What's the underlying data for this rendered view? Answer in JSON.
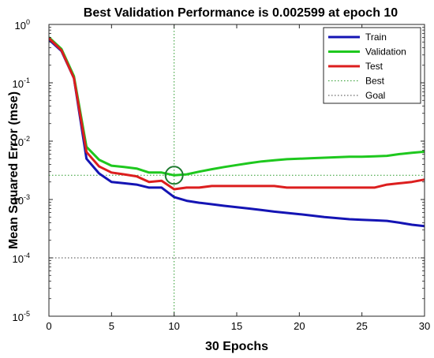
{
  "chart_data": {
    "type": "line",
    "title": "Best Validation Performance is 0.002599 at epoch 10",
    "xlabel": "30 Epochs",
    "ylabel": "Mean Squared Error  (mse)",
    "xscale": "linear",
    "yscale": "log",
    "xlim": [
      0,
      30
    ],
    "ylim": [
      1e-05,
      1
    ],
    "xticks": [
      0,
      5,
      10,
      15,
      20,
      25,
      30
    ],
    "yticks": [
      {
        "value": 1,
        "base": "10",
        "exp": "0"
      },
      {
        "value": 0.1,
        "base": "10",
        "exp": "-1"
      },
      {
        "value": 0.01,
        "base": "10",
        "exp": "-2"
      },
      {
        "value": 0.001,
        "base": "10",
        "exp": "-3"
      },
      {
        "value": 0.0001,
        "base": "10",
        "exp": "-4"
      },
      {
        "value": 1e-05,
        "base": "10",
        "exp": "-5"
      }
    ],
    "grid": false,
    "legend_position": "top-right",
    "x": [
      0,
      1,
      2,
      3,
      4,
      5,
      6,
      7,
      8,
      9,
      10,
      11,
      12,
      13,
      14,
      15,
      16,
      17,
      18,
      19,
      20,
      21,
      22,
      23,
      24,
      25,
      26,
      27,
      28,
      29,
      30
    ],
    "series": [
      {
        "name": "Train",
        "color": "#1414b4",
        "values": [
          0.55,
          0.35,
          0.12,
          0.005,
          0.0028,
          0.002,
          0.0019,
          0.0018,
          0.0016,
          0.0016,
          0.0011,
          0.00095,
          0.00088,
          0.00083,
          0.00078,
          0.00074,
          0.0007,
          0.00066,
          0.00062,
          0.00059,
          0.00056,
          0.00053,
          0.0005,
          0.00048,
          0.00046,
          0.00045,
          0.00044,
          0.00043,
          0.0004,
          0.00037,
          0.00035
        ]
      },
      {
        "name": "Validation",
        "color": "#1ec81e",
        "values": [
          0.6,
          0.38,
          0.13,
          0.008,
          0.0048,
          0.0038,
          0.0036,
          0.0034,
          0.0029,
          0.0029,
          0.0026,
          0.0027,
          0.003,
          0.0033,
          0.0036,
          0.0039,
          0.0042,
          0.0045,
          0.0047,
          0.0049,
          0.005,
          0.0051,
          0.0052,
          0.0053,
          0.0054,
          0.0054,
          0.0055,
          0.0056,
          0.006,
          0.0063,
          0.0066
        ]
      },
      {
        "name": "Test",
        "color": "#dc1e1e",
        "values": [
          0.58,
          0.36,
          0.12,
          0.0065,
          0.0037,
          0.0029,
          0.0027,
          0.0025,
          0.002,
          0.0021,
          0.0015,
          0.0016,
          0.0016,
          0.0017,
          0.0017,
          0.0017,
          0.0017,
          0.0017,
          0.0017,
          0.0016,
          0.0016,
          0.0016,
          0.0016,
          0.0016,
          0.0016,
          0.0016,
          0.0016,
          0.0018,
          0.0019,
          0.002,
          0.0022
        ]
      }
    ],
    "best_line": {
      "name": "Best",
      "epoch": 10,
      "value": 0.002599,
      "color": "#2a9a2a"
    },
    "goal_line": {
      "name": "Goal",
      "value": 0.0001,
      "color": "#444444"
    },
    "marker": {
      "epoch": 10,
      "value": 0.002599,
      "shape": "circle",
      "color": "#1e7a2e"
    }
  }
}
